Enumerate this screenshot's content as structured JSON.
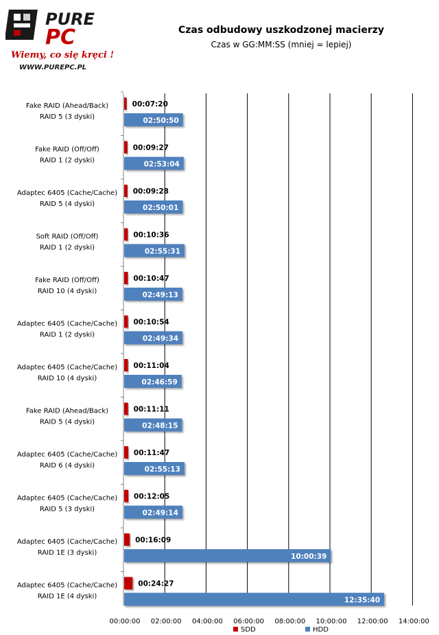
{
  "logo": {
    "brand_top": "PURE",
    "brand_bottom": "PC",
    "slogan": "Wiemy, co się kręci !",
    "url": "WWW.PUREPC.PL"
  },
  "chart_data": {
    "type": "bar",
    "orientation": "horizontal",
    "title": "Czas odbudowy uszkodzonej macierzy",
    "subtitle": "Czas w GG:MM:SS (mniej = lepiej)",
    "categories": [
      [
        "Fake RAID (Ahead/Back)",
        "RAID 5 (3 dyski)"
      ],
      [
        "Fake RAID (Off/Off)",
        "RAID 1 (2 dyski)"
      ],
      [
        "Adaptec 6405 (Cache/Cache)",
        "RAID 5 (4 dyski)"
      ],
      [
        "Soft RAID (Off/Off)",
        "RAID 1 (2 dyski)"
      ],
      [
        "Fake RAID (Off/Off)",
        "RAID 10 (4 dyski)"
      ],
      [
        "Adaptec 6405 (Cache/Cache)",
        "RAID 1 (2 dyski)"
      ],
      [
        "Adaptec 6405 (Cache/Cache)",
        "RAID 10 (4 dyski)"
      ],
      [
        "Fake RAID (Ahead/Back)",
        "RAID 5 (4 dyski)"
      ],
      [
        "Adaptec 6405 (Cache/Cache)",
        "RAID 6 (4 dyski)"
      ],
      [
        "Adaptec 6405 (Cache/Cache)",
        "RAID 5 (3 dyski)"
      ],
      [
        "Adaptec 6405 (Cache/Cache)",
        "RAID 1E (3 dyski)"
      ],
      [
        "Adaptec 6405 (Cache/Cache)",
        "RAID 1E (4 dyski)"
      ]
    ],
    "series": [
      {
        "name": "SDD",
        "color": "#c00000",
        "values": [
          "00:07:20",
          "00:09:27",
          "00:09:28",
          "00:10:36",
          "00:10:47",
          "00:10:54",
          "00:11:04",
          "00:11:11",
          "00:11:47",
          "00:12:05",
          "00:16:09",
          "00:24:27"
        ]
      },
      {
        "name": "HDD",
        "color": "#4f81bd",
        "values": [
          "02:50:50",
          "02:53:04",
          "02:50:01",
          "02:55:31",
          "02:49:13",
          "02:49:34",
          "02:46:59",
          "02:48:15",
          "02:55:13",
          "02:49:14",
          "10:00:39",
          "12:35:40"
        ]
      }
    ],
    "x_ticks": [
      "00:00:00",
      "02:00:00",
      "04:00:00",
      "06:00:00",
      "08:00:00",
      "10:00:00",
      "12:00:00",
      "14:00:00"
    ],
    "xlim": [
      "00:00:00",
      "14:00:00"
    ],
    "grid": true,
    "legend": "bottom"
  }
}
